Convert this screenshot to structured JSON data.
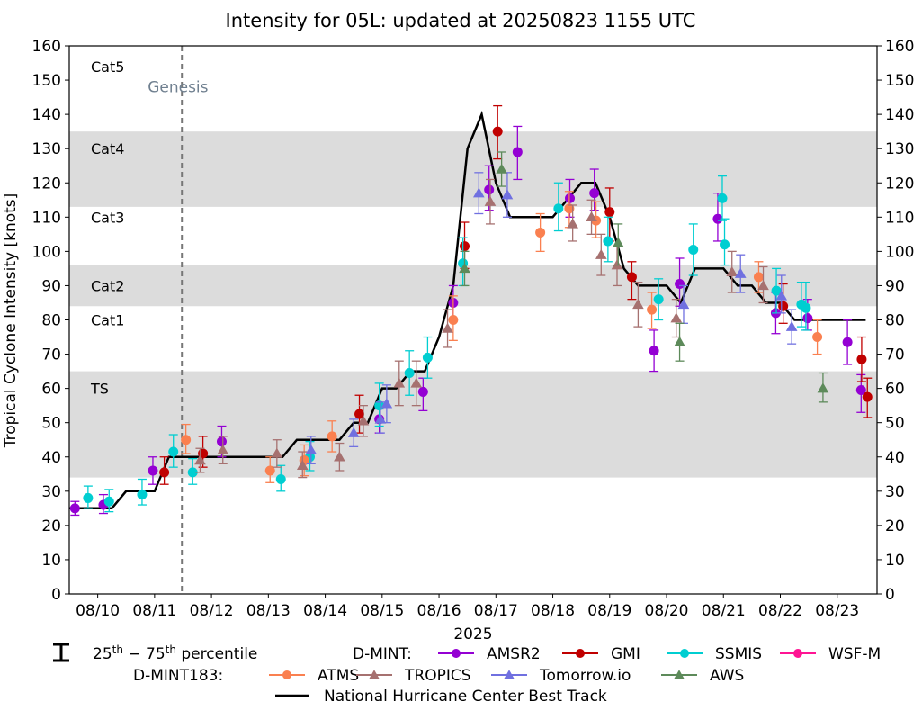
{
  "chart_data": {
    "type": "scatter",
    "title": "Intensity for 05L: updated at 20250823 1155 UTC",
    "xlabel": "2025",
    "ylabel": "Tropical Cyclone Intensity [knots]",
    "ylim": [
      0,
      160
    ],
    "xlim": [
      -0.5,
      13.7
    ],
    "y_ticks": [
      0,
      10,
      20,
      30,
      40,
      50,
      60,
      70,
      80,
      90,
      100,
      110,
      120,
      130,
      140,
      150,
      160
    ],
    "x_ticks": [
      {
        "pos": 0,
        "label": "08/10"
      },
      {
        "pos": 1,
        "label": "08/11"
      },
      {
        "pos": 2,
        "label": "08/12"
      },
      {
        "pos": 3,
        "label": "08/13"
      },
      {
        "pos": 4,
        "label": "08/14"
      },
      {
        "pos": 5,
        "label": "08/15"
      },
      {
        "pos": 6,
        "label": "08/16"
      },
      {
        "pos": 7,
        "label": "08/17"
      },
      {
        "pos": 8,
        "label": "08/18"
      },
      {
        "pos": 9,
        "label": "08/19"
      },
      {
        "pos": 10,
        "label": "08/20"
      },
      {
        "pos": 11,
        "label": "08/21"
      },
      {
        "pos": 12,
        "label": "08/22"
      },
      {
        "pos": 13,
        "label": "08/23"
      }
    ],
    "categories": [
      {
        "label": "TS",
        "y": 60,
        "band": [
          34,
          65
        ]
      },
      {
        "label": "Cat1",
        "y": 80,
        "band": null
      },
      {
        "label": "Cat2",
        "y": 90,
        "band": [
          84,
          96
        ]
      },
      {
        "label": "Cat3",
        "y": 110,
        "band": null
      },
      {
        "label": "Cat4",
        "y": 130,
        "band": [
          113,
          135
        ]
      },
      {
        "label": "Cat5",
        "y": 154,
        "band": null
      }
    ],
    "genesis": {
      "label": "Genesis",
      "x": 1.48
    },
    "best_track": {
      "name": "National Hurricane Center Best Track",
      "color": "#000000",
      "x": [
        -0.5,
        0.25,
        0.5,
        0.75,
        1.0,
        1.25,
        1.5,
        1.75,
        2.0,
        2.25,
        2.5,
        2.75,
        3.0,
        3.25,
        3.5,
        3.75,
        4.0,
        4.25,
        4.5,
        4.75,
        5.0,
        5.25,
        5.5,
        5.75,
        6.0,
        6.25,
        6.5,
        6.75,
        7.0,
        7.25,
        7.5,
        7.75,
        8.0,
        8.25,
        8.5,
        8.75,
        9.0,
        9.25,
        9.5,
        9.75,
        10.0,
        10.25,
        10.5,
        10.75,
        11.0,
        11.25,
        11.5,
        11.75,
        12.0,
        12.25,
        12.5,
        12.75,
        13.0,
        13.25,
        13.5
      ],
      "y": [
        25,
        25,
        30,
        30,
        30,
        40,
        40,
        40,
        40,
        40,
        40,
        40,
        40,
        40,
        45,
        45,
        45,
        45,
        50,
        50,
        60,
        60,
        65,
        65,
        75,
        90,
        130,
        140,
        120,
        110,
        110,
        110,
        110,
        115,
        120,
        120,
        110,
        95,
        90,
        90,
        90,
        85,
        95,
        95,
        95,
        90,
        90,
        85,
        85,
        80,
        80,
        80,
        80,
        80,
        80
      ]
    },
    "legend": {
      "percentile_label": "25th – 75th percentile",
      "dmint_label": "D-MINT:",
      "dmint183_label": "D-MINT183:"
    },
    "series": [
      {
        "name": "AMSR2",
        "group": "D-MINT",
        "marker": "circle",
        "color": "#9400d3",
        "x": [
          -0.4,
          0.1,
          0.97,
          2.18,
          4.95,
          5.72,
          6.25,
          6.88,
          7.38,
          8.3,
          8.73,
          9.78,
          10.23,
          10.9,
          11.92,
          12.48,
          13.18,
          13.42
        ],
        "y": [
          25,
          26,
          36,
          44.5,
          51,
          59,
          85,
          118,
          129,
          115.5,
          117,
          71,
          90.5,
          109.5,
          82,
          80.5,
          73.5,
          59.5
        ],
        "lo": [
          23,
          23.5,
          32,
          40,
          47,
          53.5,
          80,
          112,
          121,
          110,
          112,
          65,
          84,
          103,
          76,
          77,
          67,
          53
        ],
        "hi": [
          27,
          29,
          40,
          49,
          54,
          63,
          90,
          125,
          136.5,
          121,
          124,
          77,
          98,
          117,
          88,
          86,
          80,
          64
        ]
      },
      {
        "name": "GMI",
        "group": "D-MINT",
        "marker": "circle",
        "color": "#c00000",
        "x": [
          1.17,
          1.85,
          4.6,
          6.45,
          7.03,
          9.0,
          9.39,
          12.05,
          13.43,
          13.53
        ],
        "y": [
          35.5,
          41,
          52.5,
          101.5,
          135,
          111.5,
          92.5,
          84,
          68.5,
          57.5
        ],
        "lo": [
          32,
          37,
          47,
          95,
          127,
          103,
          86,
          79,
          62,
          51.5
        ],
        "hi": [
          40,
          46,
          58,
          108.5,
          142.5,
          118.5,
          97,
          90.5,
          75,
          63
        ]
      },
      {
        "name": "SSMIS",
        "group": "D-MINT",
        "marker": "circle",
        "color": "#00ced1",
        "x": [
          -0.17,
          0.2,
          0.78,
          1.33,
          1.67,
          3.22,
          3.73,
          4.95,
          5.48,
          5.8,
          6.42,
          8.1,
          8.97,
          9.86,
          10.47,
          10.98,
          11.02,
          11.93,
          12.37,
          12.45
        ],
        "y": [
          28,
          27,
          29,
          41.5,
          35.5,
          33.5,
          40,
          55,
          64.5,
          69,
          96.5,
          112.5,
          103,
          86,
          100.5,
          115.5,
          102,
          88.5,
          84.5,
          83.5
        ],
        "lo": [
          25,
          24,
          26,
          37,
          32,
          30,
          36,
          49,
          58,
          63,
          90,
          106,
          97,
          80,
          93,
          109,
          96,
          82,
          78,
          77
        ],
        "hi": [
          31.5,
          30.5,
          33.5,
          46.5,
          39.5,
          37.5,
          44.5,
          61.5,
          71,
          75,
          104,
          120,
          110,
          92,
          108,
          122,
          109.5,
          95,
          91,
          91
        ]
      },
      {
        "name": "WSF-M",
        "group": "D-MINT",
        "marker": "circle",
        "color": "#ff1493",
        "x": [],
        "y": [],
        "lo": [],
        "hi": []
      },
      {
        "name": "ATMS",
        "group": "D-MINT183",
        "marker": "circle",
        "color": "#fa8050",
        "x": [
          1.55,
          3.03,
          3.63,
          4.12,
          6.25,
          7.78,
          8.29,
          8.76,
          9.74,
          11.62,
          12.65
        ],
        "y": [
          45,
          36,
          39,
          46,
          80,
          105.5,
          112.5,
          109,
          83,
          92.5,
          75
        ],
        "lo": [
          41,
          32.5,
          34.5,
          41.5,
          74,
          100,
          107,
          104,
          77.5,
          88,
          70
        ],
        "hi": [
          49.5,
          40,
          43.5,
          50.5,
          87,
          111,
          117.5,
          114.5,
          88,
          97,
          80
        ]
      },
      {
        "name": "TROPICS",
        "group": "D-MINT183",
        "marker": "triangle",
        "color": "#a67170",
        "x": [
          1.8,
          2.2,
          3.15,
          3.6,
          4.25,
          4.67,
          5.3,
          5.6,
          6.15,
          6.9,
          8.35,
          8.68,
          8.85,
          9.13,
          9.5,
          10.17,
          11.15,
          11.7
        ],
        "y": [
          39,
          42,
          41,
          37.5,
          40,
          50.5,
          61.5,
          61.5,
          77.5,
          114.5,
          108,
          110,
          99,
          96,
          84.5,
          80.5,
          94,
          90
        ],
        "lo": [
          35.5,
          38,
          37,
          34,
          36,
          46,
          55,
          55,
          72,
          108,
          103,
          105,
          93,
          90,
          78,
          75,
          88,
          85
        ],
        "hi": [
          42.5,
          46,
          45,
          41.5,
          44,
          55,
          68,
          68,
          83,
          121,
          113.5,
          115,
          105,
          101.5,
          91,
          86,
          100,
          95.5
        ]
      },
      {
        "name": "Tomorrow.io",
        "group": "D-MINT183",
        "marker": "triangle",
        "color": "#7070e0",
        "x": [
          3.75,
          4.5,
          4.97,
          5.08,
          6.7,
          7.2,
          10.3,
          11.3,
          12.02,
          12.2
        ],
        "y": [
          42,
          47,
          51,
          55.5,
          117,
          116.5,
          84.5,
          93.5,
          87,
          78
        ],
        "lo": [
          38,
          43,
          47,
          50,
          111,
          110,
          79,
          88,
          82,
          73
        ],
        "hi": [
          46,
          51,
          56,
          61,
          123,
          123,
          90,
          99,
          93,
          83
        ]
      },
      {
        "name": "AWS",
        "group": "D-MINT183",
        "marker": "triangle",
        "color": "#5d8a5a",
        "x": [
          6.45,
          7.1,
          9.15,
          10.23,
          12.75
        ],
        "y": [
          95,
          124,
          102.5,
          73.5,
          60
        ],
        "lo": [
          90,
          119,
          96,
          68,
          56
        ],
        "hi": [
          100,
          129,
          108,
          79,
          64.5
        ]
      }
    ]
  }
}
